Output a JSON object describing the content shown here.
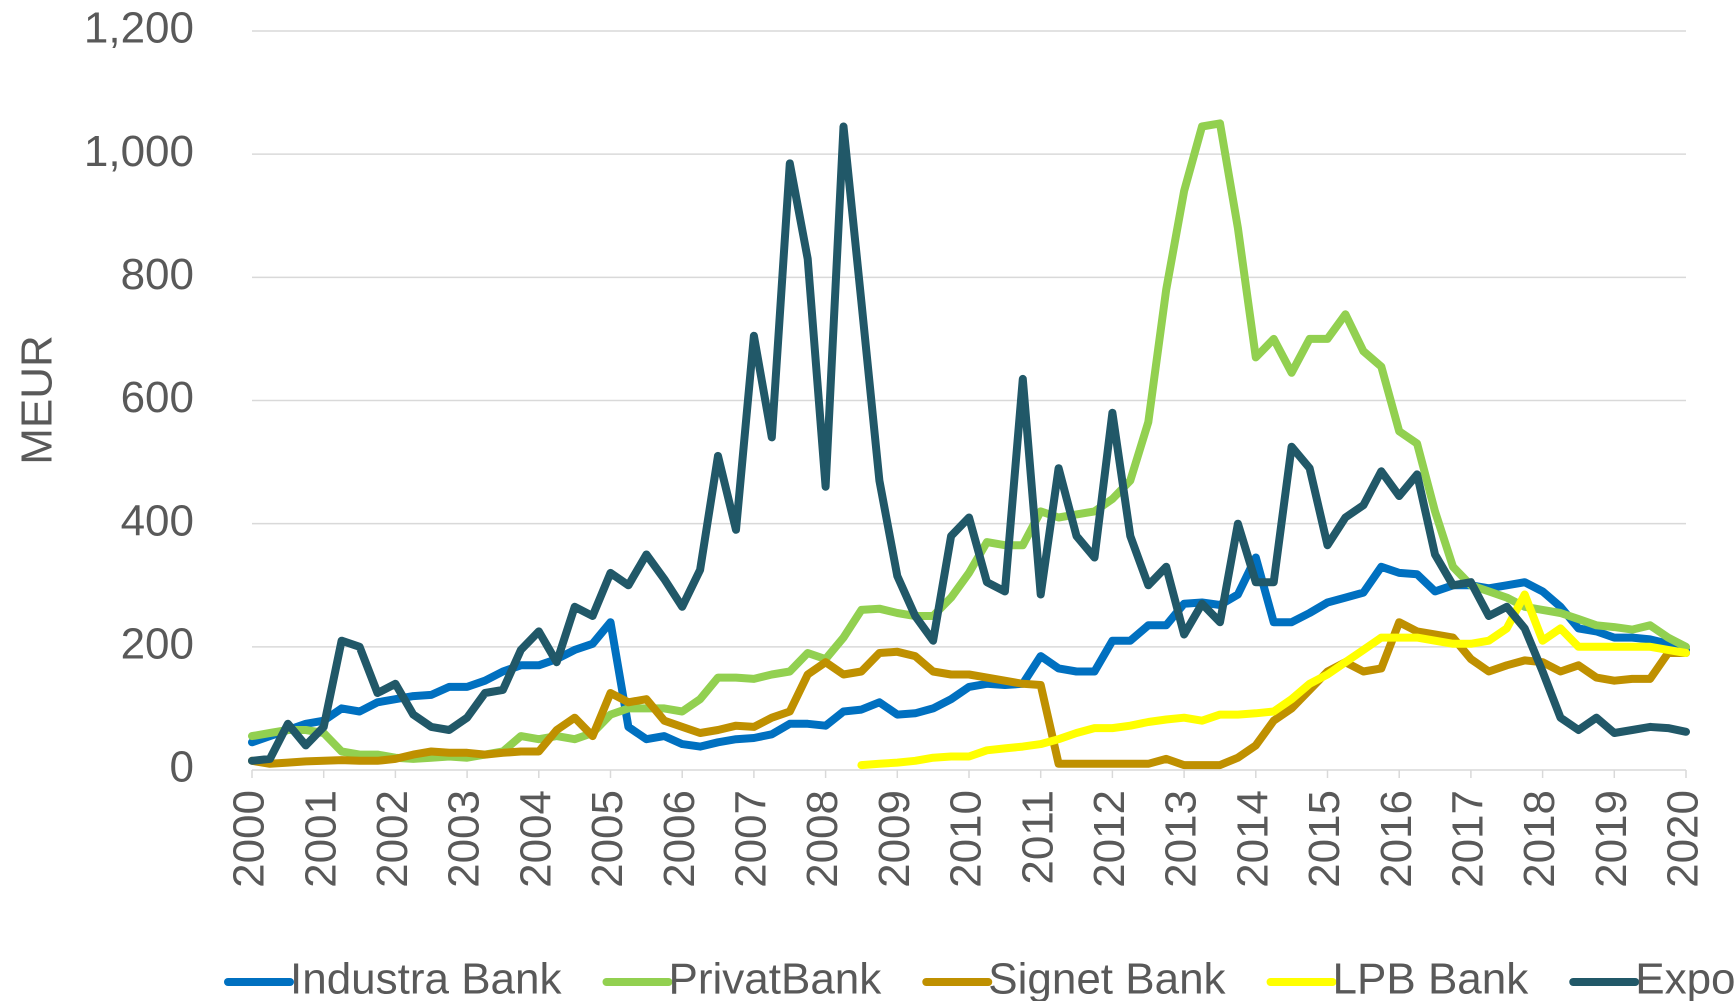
{
  "chart_data": {
    "type": "line",
    "ylabel": "MEUR",
    "x": [
      2000,
      2000.25,
      2000.5,
      2000.75,
      2001,
      2001.25,
      2001.5,
      2001.75,
      2002,
      2002.25,
      2002.5,
      2002.75,
      2003,
      2003.25,
      2003.5,
      2003.75,
      2004,
      2004.25,
      2004.5,
      2004.75,
      2005,
      2005.25,
      2005.5,
      2005.75,
      2006,
      2006.25,
      2006.5,
      2006.75,
      2007,
      2007.25,
      2007.5,
      2007.75,
      2008,
      2008.25,
      2008.5,
      2008.75,
      2009,
      2009.25,
      2009.5,
      2009.75,
      2010,
      2010.25,
      2010.5,
      2010.75,
      2011,
      2011.25,
      2011.5,
      2011.75,
      2012,
      2012.25,
      2012.5,
      2012.75,
      2013,
      2013.25,
      2013.5,
      2013.75,
      2014,
      2014.25,
      2014.5,
      2014.75,
      2015,
      2015.25,
      2015.5,
      2015.75,
      2016,
      2016.25,
      2016.5,
      2016.75,
      2017,
      2017.25,
      2017.5,
      2017.75,
      2018,
      2018.25,
      2018.5,
      2018.75,
      2019,
      2019.25,
      2019.5,
      2019.75,
      2020
    ],
    "xlim": [
      2000,
      2020
    ],
    "xticks": [
      2000,
      2001,
      2002,
      2003,
      2004,
      2005,
      2006,
      2007,
      2008,
      2009,
      2010,
      2011,
      2012,
      2013,
      2014,
      2015,
      2016,
      2017,
      2018,
      2019,
      2020
    ],
    "ylim": [
      0,
      1200
    ],
    "yticks": [
      0,
      200,
      400,
      600,
      800,
      {
        "value": 1000,
        "label": "1,000"
      },
      {
        "value": 1200,
        "label": "1,200"
      }
    ],
    "grid": true,
    "legend": "bottom",
    "series": [
      {
        "name": "Industra Bank",
        "color": "#0070c0",
        "values": [
          45,
          55,
          65,
          75,
          80,
          100,
          95,
          110,
          115,
          120,
          122,
          135,
          135,
          145,
          160,
          170,
          170,
          180,
          195,
          205,
          240,
          70,
          50,
          55,
          42,
          38,
          45,
          50,
          52,
          58,
          75,
          75,
          72,
          95,
          98,
          110,
          90,
          92,
          100,
          115,
          135,
          140,
          138,
          140,
          185,
          165,
          160,
          160,
          210,
          210,
          235,
          235,
          270,
          272,
          268,
          285,
          345,
          240,
          240,
          255,
          272,
          280,
          288,
          330,
          320,
          318,
          290,
          300,
          300,
          295,
          300,
          305,
          290,
          265,
          230,
          225,
          215,
          215,
          212,
          205,
          195
        ]
      },
      {
        "name": "PrivatBank",
        "color": "#92d050",
        "values": [
          55,
          60,
          65,
          65,
          60,
          30,
          25,
          25,
          20,
          18,
          20,
          22,
          20,
          25,
          30,
          55,
          50,
          55,
          50,
          60,
          90,
          100,
          100,
          100,
          95,
          115,
          150,
          150,
          148,
          155,
          160,
          190,
          180,
          215,
          260,
          262,
          255,
          250,
          250,
          280,
          320,
          370,
          365,
          365,
          420,
          410,
          415,
          420,
          440,
          470,
          565,
          780,
          940,
          1045,
          1050,
          880,
          670,
          700,
          645,
          700,
          700,
          740,
          680,
          655,
          550,
          530,
          420,
          330,
          300,
          290,
          280,
          265,
          260,
          255,
          245,
          235,
          232,
          228,
          235,
          215,
          200
        ]
      },
      {
        "name": "Signet Bank",
        "color": "#bf9000",
        "values": [
          15,
          10,
          12,
          14,
          15,
          16,
          15,
          15,
          18,
          25,
          30,
          28,
          28,
          25,
          28,
          30,
          30,
          65,
          85,
          55,
          125,
          110,
          115,
          80,
          70,
          60,
          65,
          72,
          70,
          85,
          95,
          155,
          175,
          155,
          160,
          190,
          192,
          185,
          160,
          155,
          155,
          150,
          145,
          140,
          138,
          10,
          10,
          10,
          10,
          10,
          10,
          18,
          8,
          8,
          8,
          20,
          40,
          80,
          100,
          130,
          160,
          175,
          160,
          165,
          240,
          225,
          220,
          215,
          180,
          160,
          170,
          178,
          175,
          160,
          170,
          150,
          145,
          148,
          148,
          190,
          190
        ]
      },
      {
        "name": "LPB Bank",
        "color": "#ffff00",
        "values": [
          null,
          null,
          null,
          null,
          null,
          null,
          null,
          null,
          null,
          null,
          null,
          null,
          null,
          null,
          null,
          null,
          null,
          null,
          null,
          null,
          null,
          null,
          null,
          null,
          null,
          null,
          null,
          null,
          null,
          null,
          null,
          null,
          null,
          null,
          8,
          10,
          12,
          15,
          20,
          22,
          22,
          32,
          35,
          38,
          42,
          50,
          60,
          68,
          68,
          72,
          78,
          82,
          85,
          80,
          90,
          90,
          92,
          95,
          115,
          140,
          155,
          175,
          195,
          215,
          215,
          215,
          210,
          205,
          205,
          210,
          230,
          285,
          210,
          230,
          200,
          200,
          200,
          200,
          200,
          195,
          190
        ]
      },
      {
        "name": "Expobank",
        "color": "#215868",
        "values": [
          15,
          18,
          75,
          40,
          70,
          210,
          200,
          125,
          140,
          90,
          70,
          65,
          85,
          125,
          130,
          195,
          225,
          175,
          265,
          250,
          320,
          300,
          350,
          310,
          265,
          325,
          510,
          390,
          705,
          540,
          985,
          830,
          460,
          1045,
          760,
          470,
          315,
          250,
          210,
          380,
          410,
          305,
          290,
          635,
          285,
          490,
          380,
          345,
          580,
          380,
          300,
          330,
          220,
          270,
          240,
          400,
          305,
          305,
          525,
          490,
          365,
          410,
          430,
          485,
          445,
          480,
          350,
          300,
          305,
          250,
          265,
          230,
          160,
          85,
          65,
          85,
          60,
          65,
          70,
          68,
          62
        ]
      }
    ]
  }
}
